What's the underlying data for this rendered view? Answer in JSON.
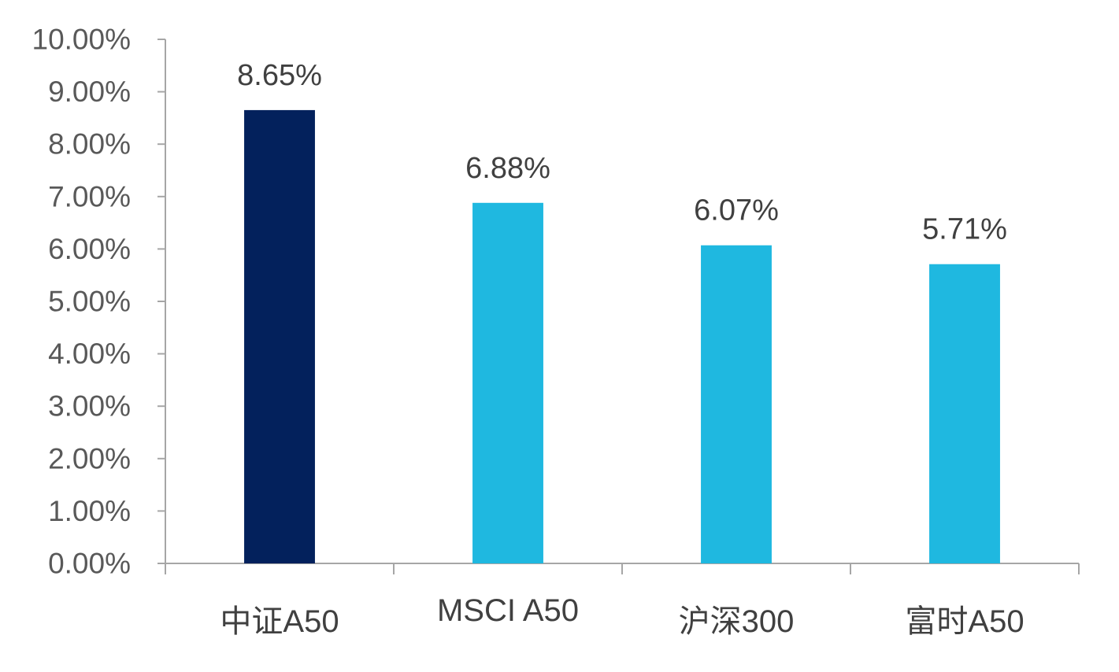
{
  "chart_data": {
    "type": "bar",
    "categories": [
      "中证A50",
      "MSCI A50",
      "沪深300",
      "富时A50"
    ],
    "values": [
      8.65,
      6.88,
      6.07,
      5.71
    ],
    "data_labels": [
      "8.65%",
      "6.88%",
      "6.07%",
      "5.71%"
    ],
    "y_ticks": [
      "0.00%",
      "1.00%",
      "2.00%",
      "3.00%",
      "4.00%",
      "5.00%",
      "6.00%",
      "7.00%",
      "8.00%",
      "9.00%",
      "10.00%"
    ],
    "ylim": [
      0,
      10
    ],
    "grid": false,
    "legend": "none",
    "colors": [
      "#03215c",
      "#1fb8e0",
      "#1fb8e0",
      "#1fb8e0"
    ],
    "title": "",
    "xlabel": "",
    "ylabel": ""
  }
}
